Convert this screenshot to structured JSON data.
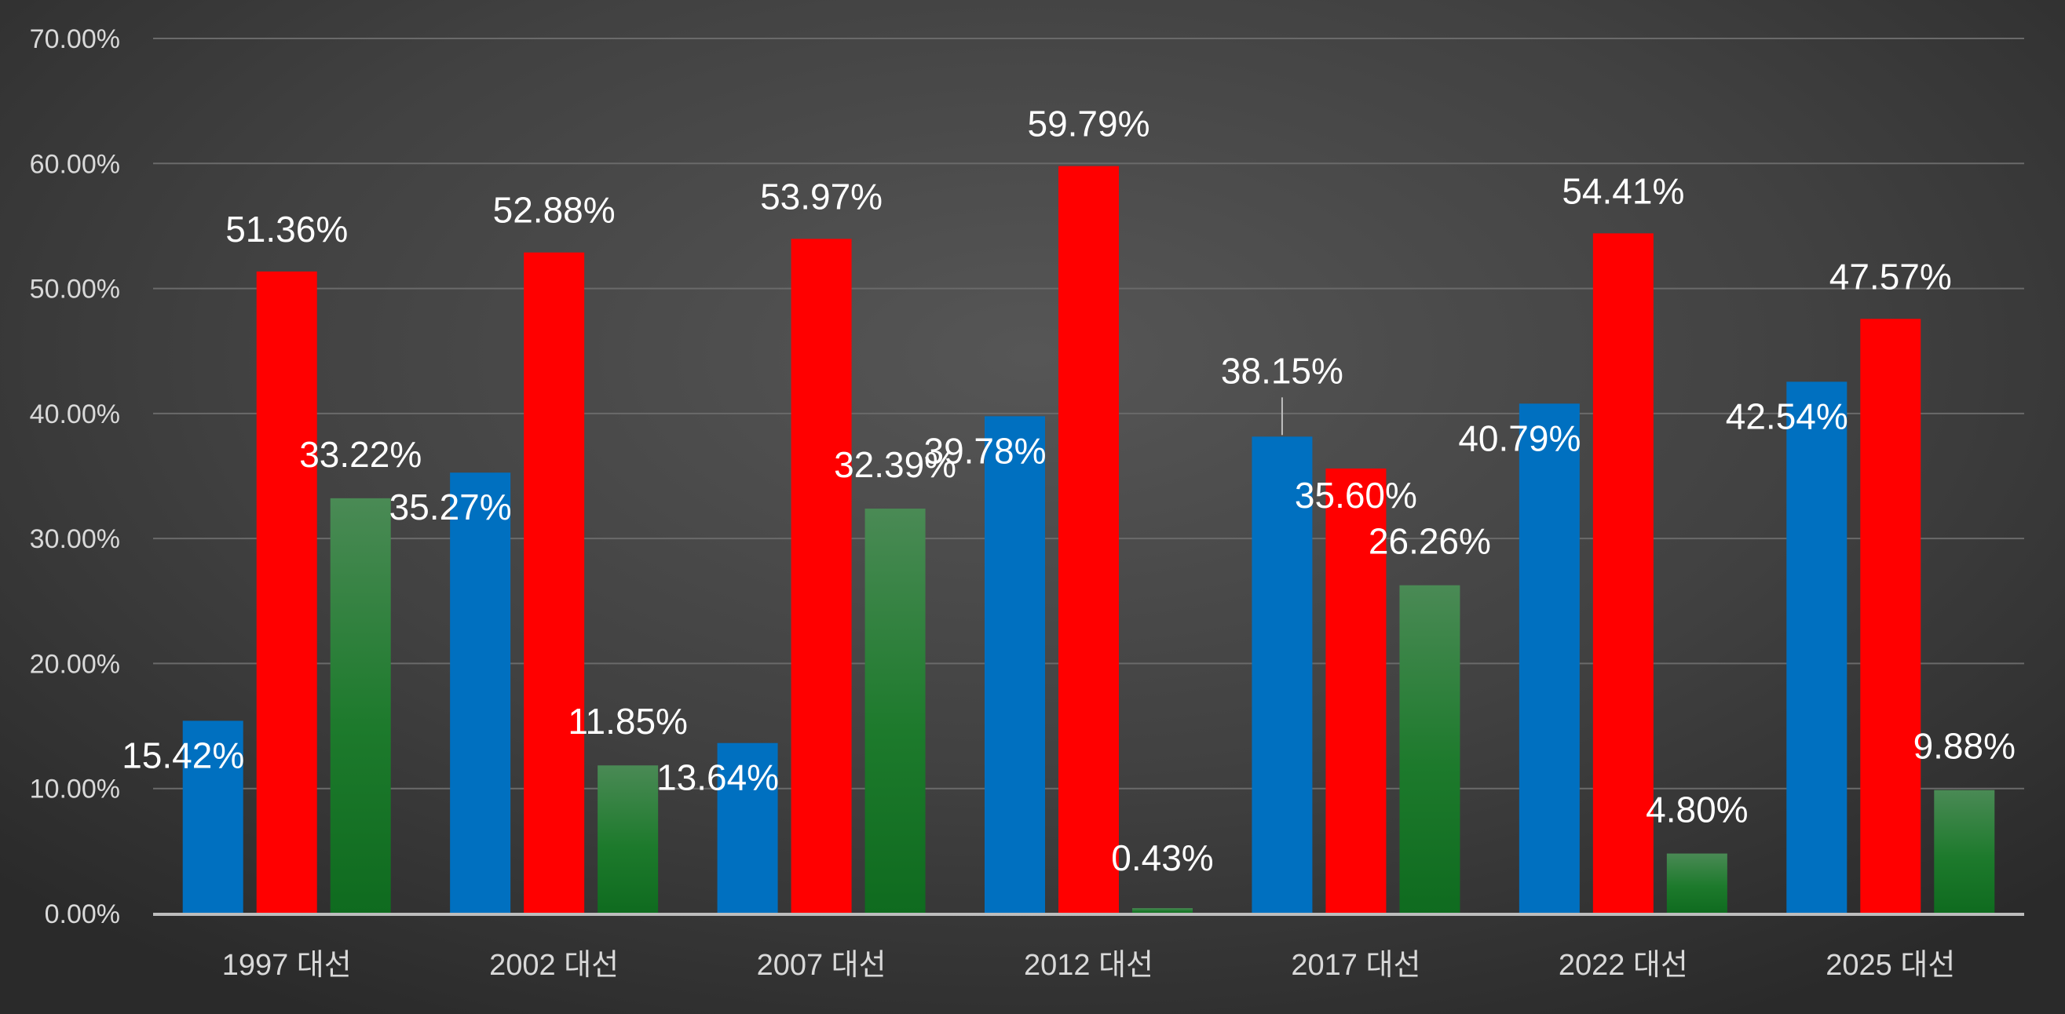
{
  "chart_data": {
    "type": "bar",
    "title": "",
    "xlabel": "",
    "ylabel": "",
    "ylim": [
      0,
      70
    ],
    "y_ticks": [
      "0.00%",
      "10.00%",
      "20.00%",
      "30.00%",
      "40.00%",
      "50.00%",
      "60.00%",
      "70.00%"
    ],
    "grid": true,
    "legend": "none",
    "categories": [
      "1997 대선",
      "2002 대선",
      "2007 대선",
      "2012 대선",
      "2017 대선",
      "2022 대선",
      "2025 대선"
    ],
    "series": [
      {
        "color": "#0070c0",
        "values": [
          15.42,
          35.27,
          13.64,
          39.78,
          38.15,
          40.79,
          42.54
        ],
        "labels": [
          "15.42%",
          "35.27%",
          "13.64%",
          "39.78%",
          "38.15%",
          "40.79%",
          "42.54%"
        ]
      },
      {
        "color": "#ff0000",
        "values": [
          51.36,
          52.88,
          53.97,
          59.79,
          35.6,
          54.41,
          47.57
        ],
        "labels": [
          "51.36%",
          "52.88%",
          "53.97%",
          "59.79%",
          "35.60%",
          "54.41%",
          "47.57%"
        ]
      },
      {
        "color": "#1a7a2a",
        "values": [
          33.22,
          11.85,
          32.39,
          0.43,
          26.26,
          4.8,
          9.88
        ],
        "labels": [
          "33.22%",
          "11.85%",
          "32.39%",
          "0.43%",
          "26.26%",
          "4.80%",
          "9.88%"
        ]
      }
    ]
  }
}
